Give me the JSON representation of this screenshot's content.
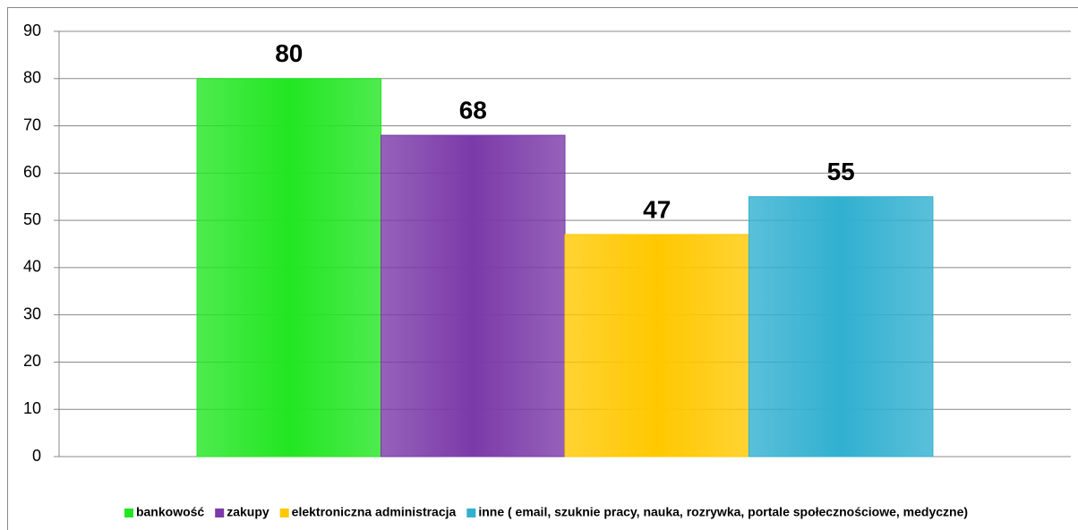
{
  "chart_data": {
    "type": "bar",
    "categories": [
      null
    ],
    "series": [
      {
        "name": "bankowość",
        "color": "#22e622",
        "values": [
          80
        ]
      },
      {
        "name": "zakupy",
        "color": "#7b3aa8",
        "values": [
          68
        ]
      },
      {
        "name": "elektroniczna administracja",
        "color": "#ffc800",
        "values": [
          47
        ]
      },
      {
        "name": "inne ( email, szuknie pracy, nauka, rozrywka, portale społecznościowe, medyczne)",
        "color": "#31b0d0",
        "values": [
          55
        ]
      }
    ],
    "ylim": [
      0,
      90
    ],
    "yticks": [
      0,
      10,
      20,
      30,
      40,
      50,
      60,
      70,
      80,
      90
    ],
    "grid": true,
    "legend": "bottom"
  }
}
